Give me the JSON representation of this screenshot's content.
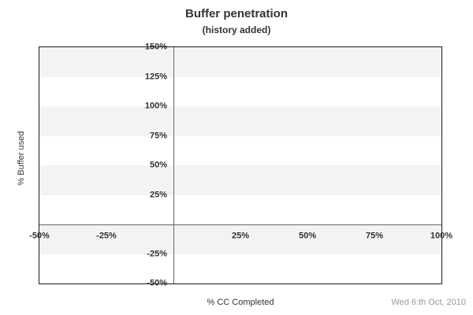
{
  "header": {
    "title": "Buffer penetration",
    "subtitle": "(history added)"
  },
  "footer": {
    "date": "Wed 6:th Oct, 2010"
  },
  "colors": {
    "band_shaded": "#f3f3f3",
    "band_plain": "#ffffff",
    "plot_border": "#1a1a1a",
    "zero_line": "#666666",
    "text": "#333333",
    "date_text": "#999999"
  },
  "chart_data": {
    "type": "scatter",
    "title": "Buffer penetration",
    "subtitle": "(history added)",
    "xlabel": "% CC Completed",
    "ylabel": "% Buffer used",
    "xlim": [
      -50,
      100
    ],
    "ylim": [
      -50,
      150
    ],
    "x_ticks": [
      {
        "value": -50,
        "label": "-50%"
      },
      {
        "value": -25,
        "label": "-25%"
      },
      {
        "value": 25,
        "label": "25%"
      },
      {
        "value": 50,
        "label": "50%"
      },
      {
        "value": 75,
        "label": "75%"
      },
      {
        "value": 100,
        "label": "100%"
      }
    ],
    "y_ticks": [
      {
        "value": 150,
        "label": "150%"
      },
      {
        "value": 125,
        "label": "125%"
      },
      {
        "value": 100,
        "label": "100%"
      },
      {
        "value": 75,
        "label": "75%"
      },
      {
        "value": 50,
        "label": "50%"
      },
      {
        "value": 25,
        "label": "25%"
      },
      {
        "value": -25,
        "label": "-25%"
      },
      {
        "value": -50,
        "label": "-50%"
      }
    ],
    "band_interval": 25,
    "bands_shaded_first": true,
    "zero_axis_lines": true,
    "grid": "off",
    "legend": "none",
    "series": []
  }
}
